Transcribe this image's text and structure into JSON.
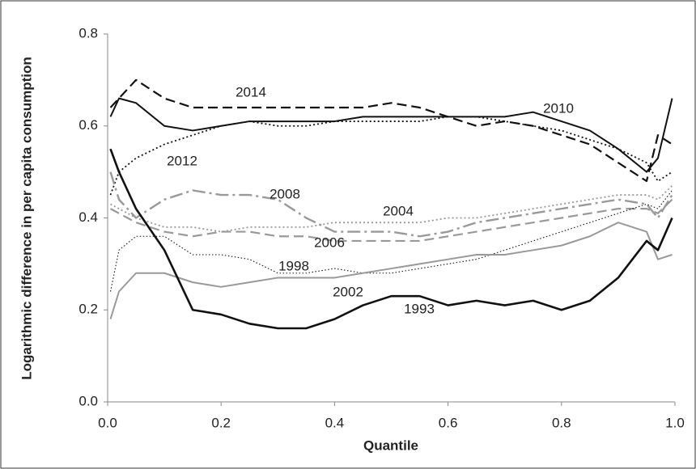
{
  "chart_data": {
    "type": "line",
    "x_label": "Quantile",
    "y_label": "Logarithmic difference in per capita consumption",
    "x": [
      0.005,
      0.02,
      0.05,
      0.1,
      0.15,
      0.2,
      0.25,
      0.3,
      0.35,
      0.4,
      0.45,
      0.5,
      0.55,
      0.6,
      0.65,
      0.7,
      0.75,
      0.8,
      0.85,
      0.9,
      0.95,
      0.97,
      0.995
    ],
    "series": [
      {
        "name": "2014",
        "color": "#111111",
        "style": "dashed",
        "values": [
          0.64,
          0.66,
          0.7,
          0.66,
          0.64,
          0.64,
          0.64,
          0.64,
          0.64,
          0.64,
          0.64,
          0.65,
          0.64,
          0.62,
          0.6,
          0.61,
          0.6,
          0.58,
          0.56,
          0.52,
          0.48,
          0.58,
          0.56
        ]
      },
      {
        "name": "2010",
        "color": "#111111",
        "style": "solid",
        "values": [
          0.62,
          0.66,
          0.65,
          0.6,
          0.59,
          0.6,
          0.61,
          0.61,
          0.61,
          0.61,
          0.62,
          0.62,
          0.62,
          0.62,
          0.62,
          0.62,
          0.63,
          0.61,
          0.59,
          0.55,
          0.5,
          0.53,
          0.66
        ]
      },
      {
        "name": "2012",
        "color": "#111111",
        "style": "dotted",
        "values": [
          0.45,
          0.5,
          0.53,
          0.56,
          0.58,
          0.6,
          0.61,
          0.6,
          0.6,
          0.61,
          0.61,
          0.61,
          0.61,
          0.62,
          0.62,
          0.61,
          0.6,
          0.59,
          0.57,
          0.55,
          0.52,
          0.48,
          0.5
        ]
      },
      {
        "name": "2008",
        "color": "#999999",
        "style": "dashdot",
        "values": [
          0.5,
          0.44,
          0.4,
          0.44,
          0.46,
          0.45,
          0.45,
          0.44,
          0.4,
          0.37,
          0.37,
          0.37,
          0.36,
          0.37,
          0.39,
          0.4,
          0.41,
          0.42,
          0.43,
          0.44,
          0.43,
          0.4,
          0.45
        ]
      },
      {
        "name": "2004",
        "color": "#999999",
        "style": "dotted",
        "values": [
          0.43,
          0.42,
          0.4,
          0.38,
          0.38,
          0.37,
          0.38,
          0.38,
          0.38,
          0.39,
          0.39,
          0.39,
          0.39,
          0.4,
          0.4,
          0.41,
          0.42,
          0.43,
          0.44,
          0.45,
          0.45,
          0.44,
          0.47
        ]
      },
      {
        "name": "2006",
        "color": "#999999",
        "style": "dashed",
        "values": [
          0.42,
          0.41,
          0.39,
          0.37,
          0.36,
          0.37,
          0.37,
          0.36,
          0.36,
          0.35,
          0.35,
          0.35,
          0.35,
          0.36,
          0.37,
          0.38,
          0.39,
          0.4,
          0.41,
          0.42,
          0.42,
          0.41,
          0.44
        ]
      },
      {
        "name": "1998",
        "color": "#111111",
        "style": "finedotted",
        "values": [
          0.24,
          0.33,
          0.36,
          0.36,
          0.32,
          0.32,
          0.31,
          0.28,
          0.28,
          0.29,
          0.28,
          0.28,
          0.29,
          0.3,
          0.31,
          0.33,
          0.35,
          0.37,
          0.39,
          0.41,
          0.43,
          0.42,
          0.46
        ]
      },
      {
        "name": "2002",
        "color": "#999999",
        "style": "solid",
        "values": [
          0.18,
          0.24,
          0.28,
          0.28,
          0.26,
          0.25,
          0.26,
          0.27,
          0.27,
          0.27,
          0.28,
          0.29,
          0.3,
          0.31,
          0.32,
          0.32,
          0.33,
          0.34,
          0.36,
          0.39,
          0.37,
          0.31,
          0.32
        ]
      },
      {
        "name": "1993",
        "color": "#111111",
        "style": "thick",
        "values": [
          0.55,
          0.5,
          0.42,
          0.33,
          0.2,
          0.19,
          0.17,
          0.16,
          0.16,
          0.18,
          0.21,
          0.23,
          0.23,
          0.21,
          0.22,
          0.21,
          0.22,
          0.2,
          0.22,
          0.27,
          0.35,
          0.33,
          0.4
        ]
      }
    ],
    "xlim": [
      0,
      1
    ],
    "xticks": [
      {
        "value": 0,
        "label": "0.0"
      },
      0.2,
      0.4,
      0.6,
      0.8,
      {
        "value": 1,
        "label": "1.0"
      }
    ],
    "ylim": [
      0,
      0.8
    ],
    "yticks": [
      {
        "value": 0,
        "label": "0.0"
      },
      0.2,
      0.4,
      0.6,
      0.8
    ],
    "grid": false
  }
}
